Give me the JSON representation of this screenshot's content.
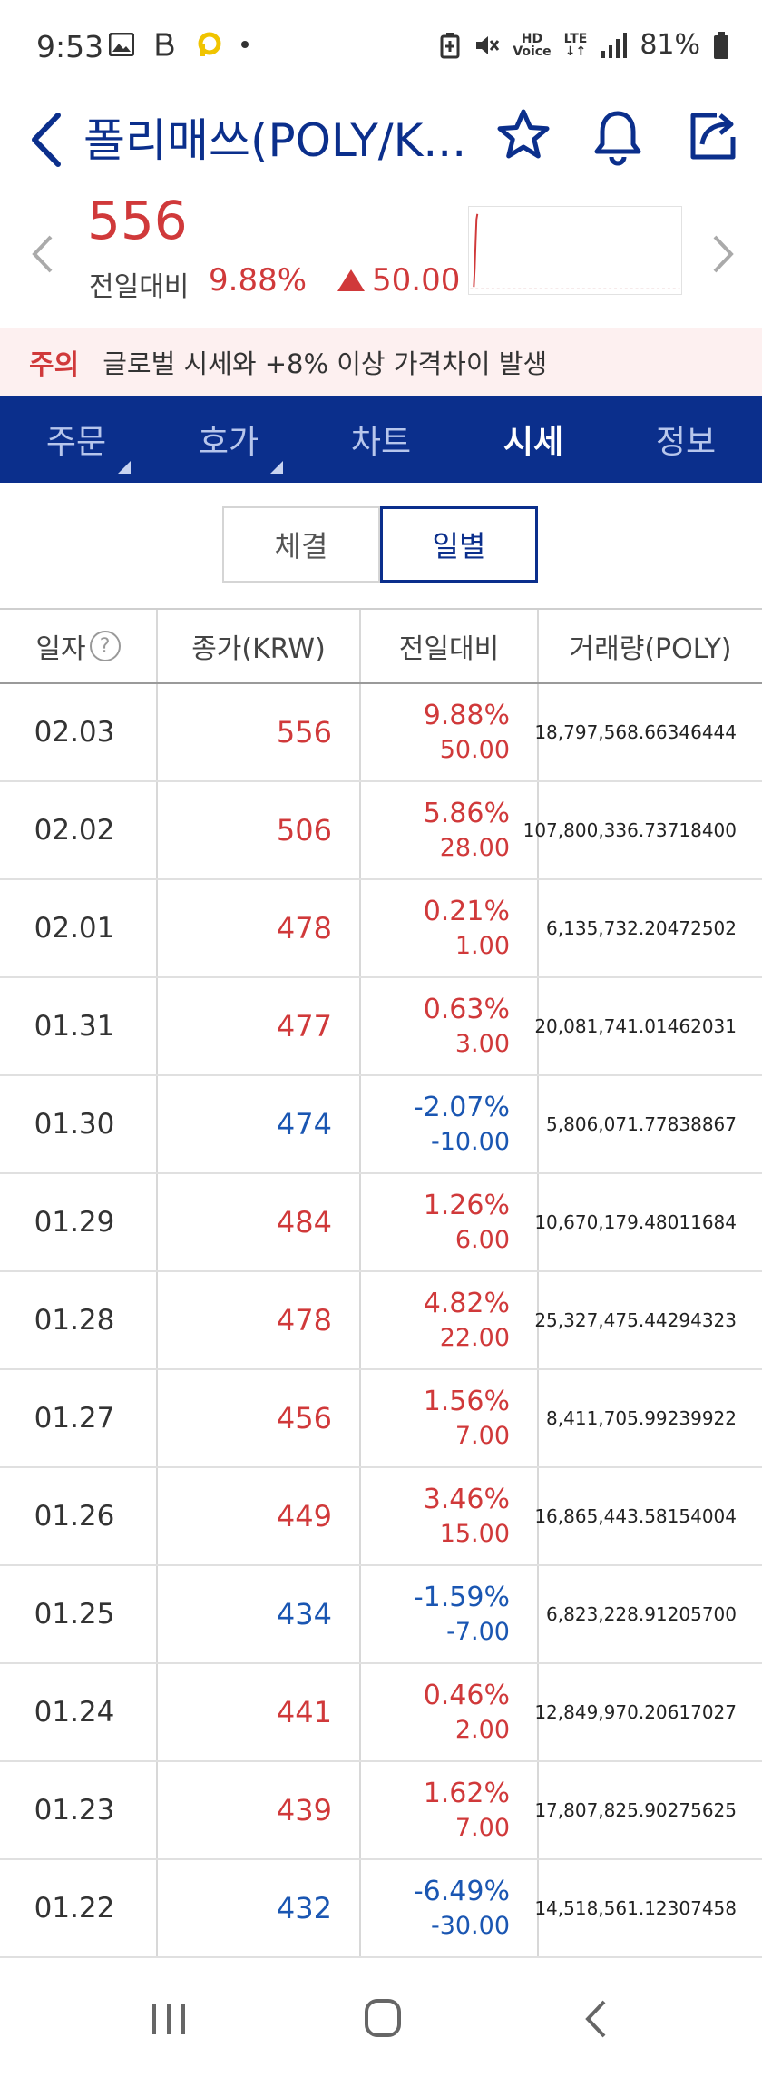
{
  "status_bar": {
    "time": "9:53",
    "battery": "81%"
  },
  "header": {
    "title": "폴리매쓰(POLY/K..."
  },
  "price": {
    "current": "556",
    "change_label": "전일대비",
    "change_pct": "9.88%",
    "change_abs": "50.00"
  },
  "warning": {
    "label": "주의",
    "text": "글로벌 시세와 +8% 이상 가격차이 발생"
  },
  "tabs": [
    {
      "label": "주문"
    },
    {
      "label": "호가"
    },
    {
      "label": "차트"
    },
    {
      "label": "시세"
    },
    {
      "label": "정보"
    }
  ],
  "segment": {
    "trade": "체결",
    "daily": "일별"
  },
  "table": {
    "headers": {
      "date": "일자",
      "close": "종가(KRW)",
      "change": "전일대비",
      "volume": "거래량(POLY)"
    },
    "rows": [
      {
        "date": "02.03",
        "close": "556",
        "pct": "9.88%",
        "abs": "50.00",
        "volume": "18,797,568.66346444",
        "dir": "up"
      },
      {
        "date": "02.02",
        "close": "506",
        "pct": "5.86%",
        "abs": "28.00",
        "volume": "107,800,336.73718400",
        "dir": "up"
      },
      {
        "date": "02.01",
        "close": "478",
        "pct": "0.21%",
        "abs": "1.00",
        "volume": "6,135,732.20472502",
        "dir": "up"
      },
      {
        "date": "01.31",
        "close": "477",
        "pct": "0.63%",
        "abs": "3.00",
        "volume": "20,081,741.01462031",
        "dir": "up"
      },
      {
        "date": "01.30",
        "close": "474",
        "pct": "-2.07%",
        "abs": "-10.00",
        "volume": "5,806,071.77838867",
        "dir": "down"
      },
      {
        "date": "01.29",
        "close": "484",
        "pct": "1.26%",
        "abs": "6.00",
        "volume": "10,670,179.48011684",
        "dir": "up"
      },
      {
        "date": "01.28",
        "close": "478",
        "pct": "4.82%",
        "abs": "22.00",
        "volume": "25,327,475.44294323",
        "dir": "up"
      },
      {
        "date": "01.27",
        "close": "456",
        "pct": "1.56%",
        "abs": "7.00",
        "volume": "8,411,705.99239922",
        "dir": "up"
      },
      {
        "date": "01.26",
        "close": "449",
        "pct": "3.46%",
        "abs": "15.00",
        "volume": "16,865,443.58154004",
        "dir": "up"
      },
      {
        "date": "01.25",
        "close": "434",
        "pct": "-1.59%",
        "abs": "-7.00",
        "volume": "6,823,228.91205700",
        "dir": "down"
      },
      {
        "date": "01.24",
        "close": "441",
        "pct": "0.46%",
        "abs": "2.00",
        "volume": "12,849,970.20617027",
        "dir": "up"
      },
      {
        "date": "01.23",
        "close": "439",
        "pct": "1.62%",
        "abs": "7.00",
        "volume": "17,807,825.90275625",
        "dir": "up"
      },
      {
        "date": "01.22",
        "close": "432",
        "pct": "-6.49%",
        "abs": "-30.00",
        "volume": "14,518,561.12307458",
        "dir": "down"
      }
    ]
  },
  "colors": {
    "up": "#d0393a",
    "down": "#1a56b2",
    "brand": "#0b2f8c"
  },
  "icons": [
    "back-arrow-icon",
    "star-icon",
    "bell-icon",
    "share-icon",
    "prev-arrow-icon",
    "next-arrow-icon",
    "help-icon"
  ]
}
